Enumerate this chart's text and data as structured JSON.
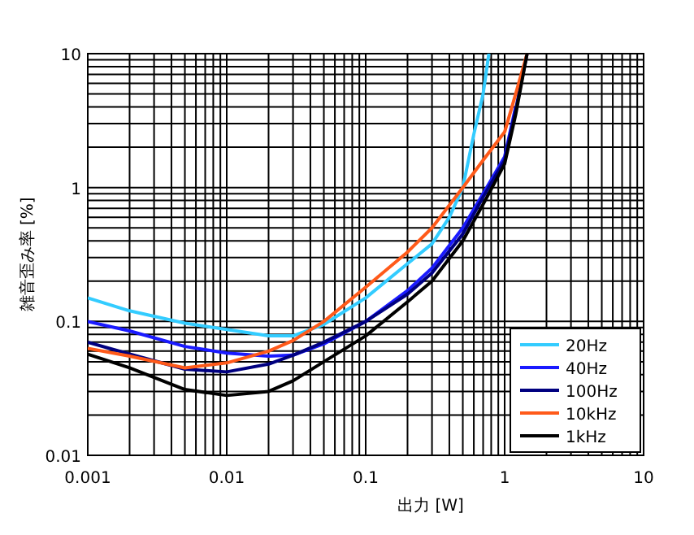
{
  "chart_data": {
    "type": "line",
    "xlabel": "出力 [W]",
    "ylabel": "雑音歪み率 [%]",
    "log": "xy",
    "xlim": [
      0.001,
      10
    ],
    "ylim": [
      0.01,
      10
    ],
    "xticks": [
      0.001,
      0.01,
      0.1,
      1,
      10
    ],
    "yticks": [
      0.01,
      0.1,
      1,
      10
    ],
    "grid": true,
    "legend": "bottom right",
    "line_style": "solid",
    "x": [
      0.001,
      0.002,
      0.005,
      0.01,
      0.02,
      0.03,
      0.05,
      0.1,
      0.2,
      0.3,
      0.5,
      0.7,
      1,
      1.2,
      1.45
    ],
    "series": [
      {
        "name": "20Hz",
        "color": "#33ccff",
        "x": [
          0.001,
          0.002,
          0.005,
          0.01,
          0.02,
          0.03,
          0.05,
          0.1,
          0.2,
          0.3,
          0.4,
          0.5,
          0.6,
          0.7,
          0.77
        ],
        "values": [
          0.15,
          0.12,
          0.097,
          0.087,
          0.078,
          0.078,
          0.095,
          0.15,
          0.27,
          0.38,
          0.6,
          1.0,
          2.5,
          5,
          10
        ]
      },
      {
        "name": "40Hz",
        "color": "#1a1aff",
        "values": [
          0.1,
          0.085,
          0.065,
          0.058,
          0.055,
          0.056,
          0.068,
          0.1,
          0.17,
          0.25,
          0.5,
          0.9,
          1.7,
          4,
          null
        ]
      },
      {
        "name": "100Hz",
        "color": "#000080",
        "values": [
          0.07,
          0.057,
          0.044,
          0.042,
          0.048,
          0.056,
          0.07,
          0.1,
          0.16,
          0.23,
          0.45,
          0.85,
          1.6,
          3.8,
          10
        ]
      },
      {
        "name": "10kHz",
        "color": "#ff5a1a",
        "values": [
          0.063,
          0.055,
          0.045,
          0.049,
          0.06,
          0.072,
          0.1,
          0.18,
          0.33,
          0.5,
          1.0,
          1.6,
          2.6,
          5,
          10
        ]
      },
      {
        "name": "1kHz",
        "color": "#000000",
        "values": [
          0.057,
          0.045,
          0.031,
          0.028,
          0.03,
          0.036,
          0.05,
          0.078,
          0.14,
          0.2,
          0.4,
          0.75,
          1.5,
          3.5,
          10
        ]
      }
    ]
  }
}
